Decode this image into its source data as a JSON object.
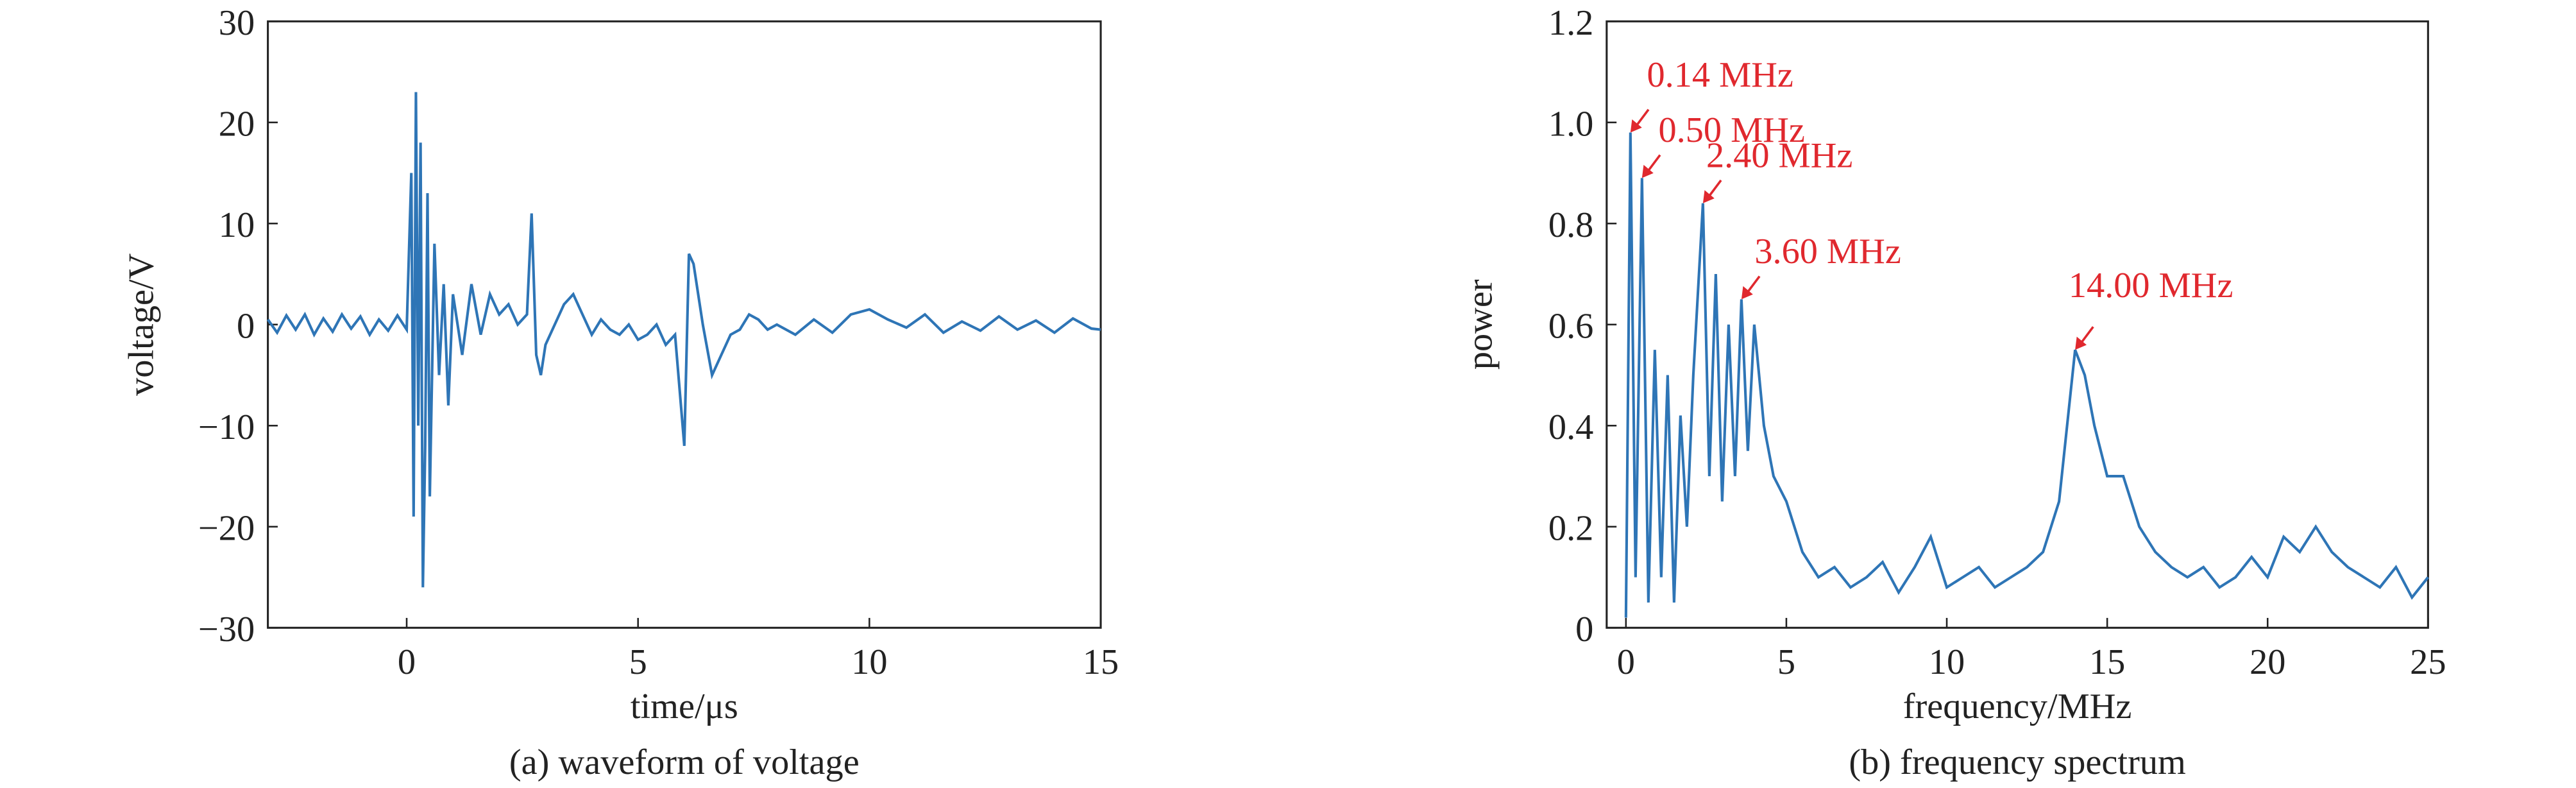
{
  "chart_data": [
    {
      "type": "line",
      "caption": "(a) waveform of voltage",
      "x_label": "time/μs",
      "y_label": "voltage/V",
      "x": [
        -3,
        -2.8,
        -2.6,
        -2.4,
        -2.2,
        -2,
        -1.8,
        -1.6,
        -1.4,
        -1.2,
        -1,
        -0.8,
        -0.6,
        -0.4,
        -0.2,
        0,
        0.1,
        0.15,
        0.2,
        0.25,
        0.3,
        0.35,
        0.4,
        0.45,
        0.5,
        0.6,
        0.7,
        0.8,
        0.9,
        1,
        1.2,
        1.4,
        1.6,
        1.8,
        2,
        2.2,
        2.4,
        2.6,
        2.7,
        2.8,
        2.9,
        3,
        3.2,
        3.4,
        3.6,
        3.8,
        4,
        4.2,
        4.4,
        4.6,
        4.8,
        5,
        5.2,
        5.4,
        5.6,
        5.8,
        6,
        6.1,
        6.2,
        6.3,
        6.4,
        6.6,
        6.8,
        7,
        7.2,
        7.4,
        7.6,
        7.8,
        8,
        8.4,
        8.8,
        9.2,
        9.6,
        10,
        10.4,
        10.8,
        11.2,
        11.6,
        12,
        12.4,
        12.8,
        13.2,
        13.6,
        14,
        14.4,
        14.8,
        15
      ],
      "series": [
        {
          "color": "#2e75b6",
          "values": [
            0.5,
            -0.8,
            0.9,
            -0.5,
            1,
            -1,
            0.6,
            -0.7,
            1,
            -0.4,
            0.8,
            -1,
            0.5,
            -0.6,
            0.9,
            -0.5,
            15,
            -19,
            23,
            -10,
            18,
            -26,
            -12,
            13,
            -17,
            8,
            -5,
            4,
            -8,
            3,
            -3,
            4,
            -1,
            3,
            1,
            2,
            0,
            1,
            11,
            -3,
            -5,
            -2,
            0,
            2,
            3,
            1,
            -1,
            0.5,
            -0.5,
            -1,
            0,
            -1.5,
            -1,
            0,
            -2,
            -1,
            -12,
            7,
            6,
            3,
            0,
            -5,
            -3,
            -1,
            -0.5,
            1,
            0.5,
            -0.5,
            0,
            -1,
            0.5,
            -0.8,
            1,
            1.5,
            0.5,
            -0.3,
            1,
            -0.8,
            0.3,
            -0.6,
            0.8,
            -0.5,
            0.4,
            -0.8,
            0.6,
            -0.4,
            -0.5
          ]
        }
      ],
      "xlim": [
        -3,
        15
      ],
      "ylim": [
        -30,
        30
      ],
      "xticks": [
        0,
        5,
        10,
        15
      ],
      "yticks": [
        {
          "value": -30,
          "label": "−30"
        },
        {
          "value": -20,
          "label": "−20"
        },
        {
          "value": -10,
          "label": "−10"
        },
        0,
        10,
        20,
        30
      ]
    },
    {
      "type": "line",
      "caption": "(b) frequency spectrum",
      "x_label": "frequency/MHz",
      "y_label": "power",
      "x": [
        0,
        0.14,
        0.3,
        0.5,
        0.7,
        0.9,
        1.1,
        1.3,
        1.5,
        1.7,
        1.9,
        2.1,
        2.4,
        2.6,
        2.8,
        3,
        3.2,
        3.4,
        3.6,
        3.8,
        4,
        4.3,
        4.6,
        5,
        5.5,
        6,
        6.5,
        7,
        7.5,
        8,
        8.5,
        9,
        9.5,
        10,
        10.5,
        11,
        11.5,
        12,
        12.5,
        13,
        13.5,
        14,
        14.3,
        14.6,
        15,
        15.5,
        16,
        16.5,
        17,
        17.5,
        18,
        18.5,
        19,
        19.5,
        20,
        20.5,
        21,
        21.5,
        22,
        22.5,
        23,
        23.5,
        24,
        24.5,
        25
      ],
      "series": [
        {
          "color": "#2e75b6",
          "values": [
            0.02,
            0.98,
            0.1,
            0.89,
            0.05,
            0.55,
            0.1,
            0.5,
            0.05,
            0.42,
            0.2,
            0.5,
            0.84,
            0.3,
            0.7,
            0.25,
            0.6,
            0.3,
            0.65,
            0.35,
            0.6,
            0.4,
            0.3,
            0.25,
            0.15,
            0.1,
            0.12,
            0.08,
            0.1,
            0.13,
            0.07,
            0.12,
            0.18,
            0.08,
            0.1,
            0.12,
            0.08,
            0.1,
            0.12,
            0.15,
            0.25,
            0.55,
            0.5,
            0.4,
            0.3,
            0.3,
            0.2,
            0.15,
            0.12,
            0.1,
            0.12,
            0.08,
            0.1,
            0.14,
            0.1,
            0.18,
            0.15,
            0.2,
            0.15,
            0.12,
            0.1,
            0.08,
            0.12,
            0.06,
            0.1
          ]
        }
      ],
      "xlim": [
        -0.6,
        25
      ],
      "ylim": [
        0,
        1.2
      ],
      "xticks": [
        0,
        5,
        10,
        15,
        20,
        25
      ],
      "yticks": [
        0,
        0.2,
        0.4,
        0.6,
        0.8,
        {
          "value": 1,
          "label": "1.0"
        },
        1.2
      ],
      "annotation_color": "#e0282e",
      "annotations": [
        {
          "text": "0.14 MHz",
          "x": 0.14,
          "y": 0.98
        },
        {
          "text": "0.50 MHz",
          "x": 0.5,
          "y": 0.89
        },
        {
          "text": "2.40 MHz",
          "x": 2.4,
          "y": 0.84
        },
        {
          "text": "3.60 MHz",
          "x": 3.6,
          "y": 0.65
        },
        {
          "text": "14.00 MHz",
          "x": 14,
          "y": 0.55
        }
      ]
    }
  ]
}
